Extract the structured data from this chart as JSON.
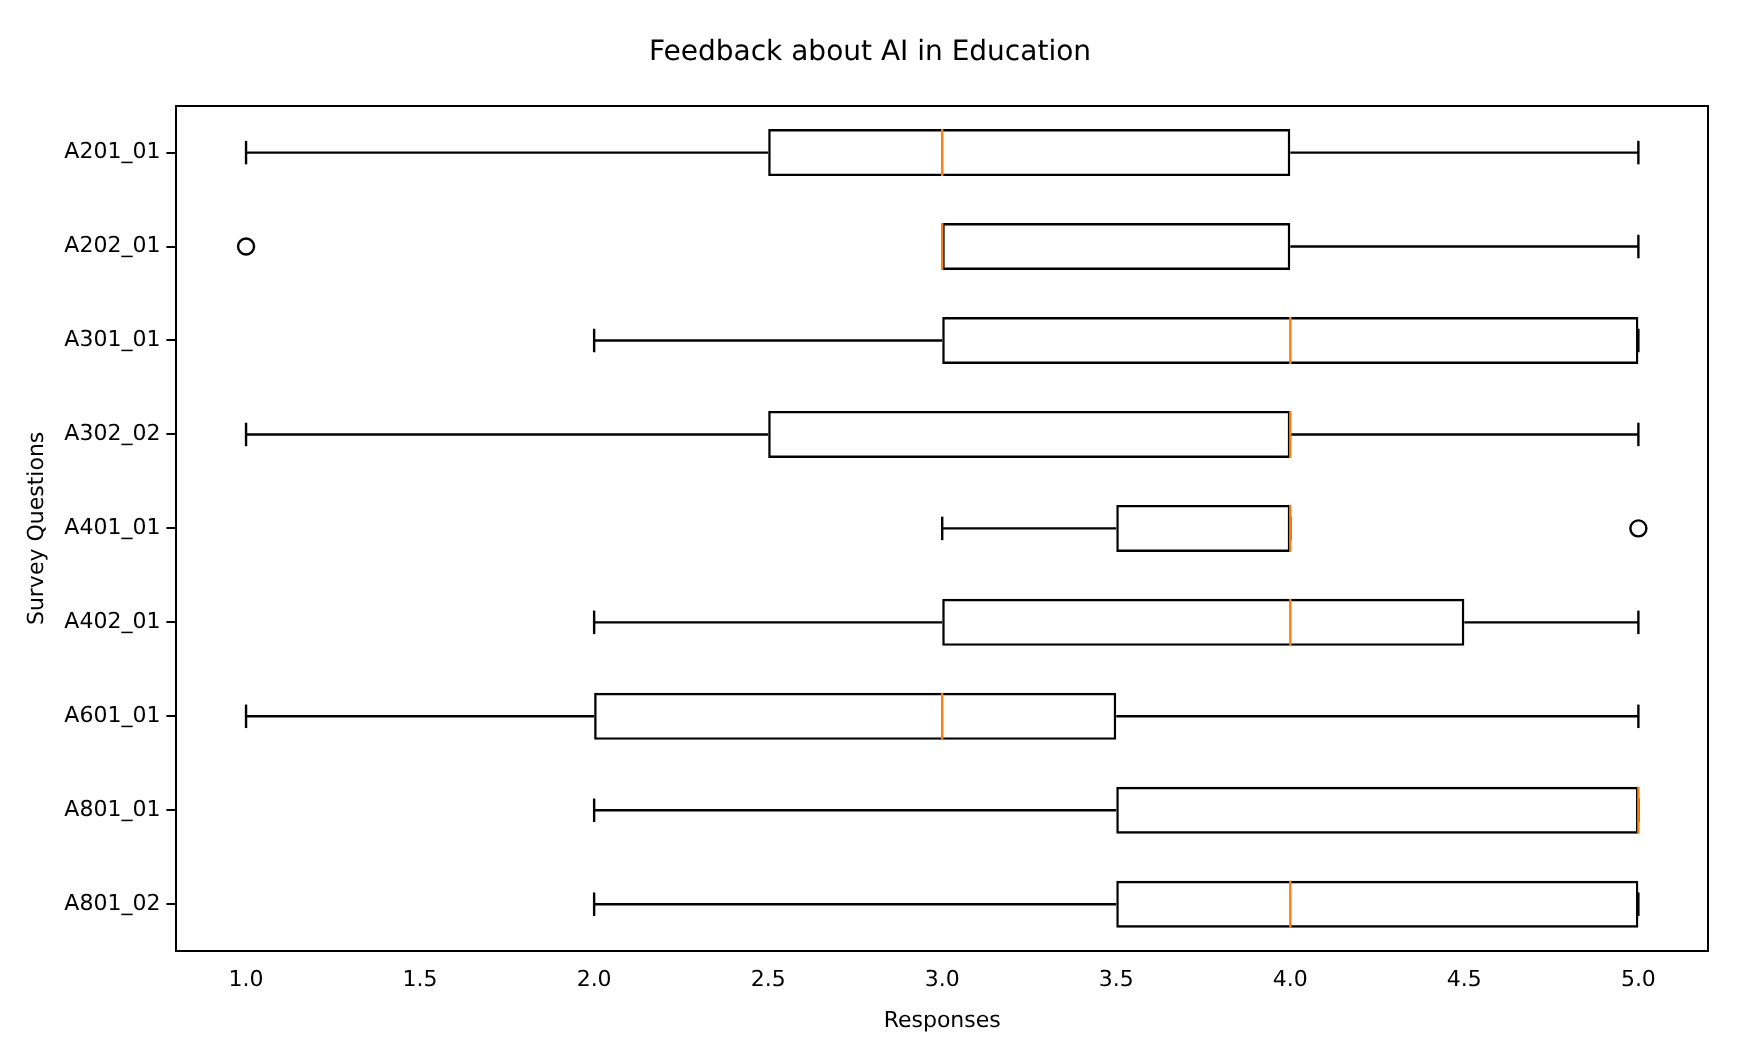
{
  "chart_data": {
    "type": "box",
    "orientation": "horizontal",
    "title": "Feedback about AI in Education",
    "xlabel": "Responses",
    "ylabel": "Survey Questions",
    "categories": [
      "A201_01",
      "A202_01",
      "A301_01",
      "A302_02",
      "A401_01",
      "A402_01",
      "A601_01",
      "A801_01",
      "A801_02"
    ],
    "boxes": [
      {
        "low": 1,
        "q1": 2.5,
        "median": 3,
        "q3": 4,
        "high": 5
      },
      {
        "low": 3,
        "q1": 3,
        "median": 3,
        "q3": 4,
        "high": 5,
        "outliers": [
          1
        ]
      },
      {
        "low": 2,
        "q1": 3,
        "median": 4,
        "q3": 5,
        "high": 5
      },
      {
        "low": 1,
        "q1": 2.5,
        "median": 4,
        "q3": 4,
        "high": 5
      },
      {
        "low": 3,
        "q1": 3.5,
        "median": 4,
        "q3": 4,
        "high": 4,
        "outliers": [
          5
        ]
      },
      {
        "low": 2,
        "q1": 3,
        "median": 4,
        "q3": 4.5,
        "high": 5
      },
      {
        "low": 1,
        "q1": 2,
        "median": 3,
        "q3": 3.5,
        "high": 5
      },
      {
        "low": 2,
        "q1": 3.5,
        "median": 5,
        "q3": 5,
        "high": 5
      },
      {
        "low": 2,
        "q1": 3.5,
        "median": 4,
        "q3": 5,
        "high": 5
      }
    ],
    "color": "#000000",
    "xlim": [
      0.8,
      5.2
    ],
    "xticks": [
      {
        "value": 1,
        "label": "1.0"
      },
      {
        "value": 1.5,
        "label": "1.5"
      },
      {
        "value": 2,
        "label": "2.0"
      },
      {
        "value": 2.5,
        "label": "2.5"
      },
      {
        "value": 3,
        "label": "3.0"
      },
      {
        "value": 3.5,
        "label": "3.5"
      },
      {
        "value": 4,
        "label": "4.0"
      },
      {
        "value": 4.5,
        "label": "4.5"
      },
      {
        "value": 5,
        "label": "5.0"
      }
    ],
    "grid": false,
    "legend": false
  }
}
